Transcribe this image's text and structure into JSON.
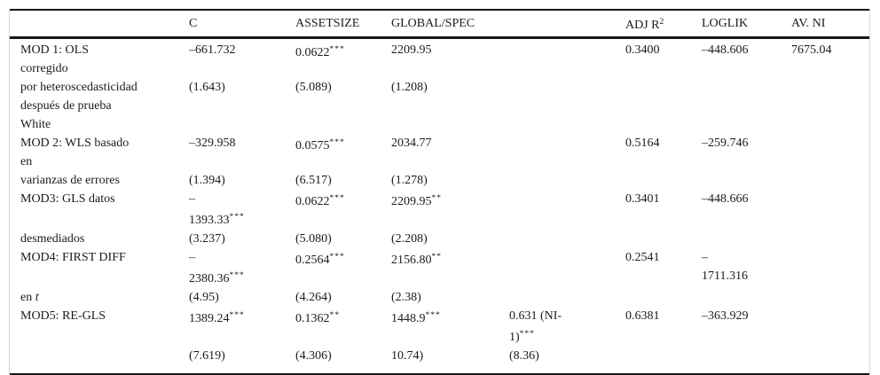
{
  "document_type": "regression-results-table",
  "colors": {
    "background": "#ffffff",
    "text": "#1b1b1b",
    "rule": "#161616",
    "frame_border": "#d4d4d4"
  },
  "table": {
    "headers": [
      {
        "t": ""
      },
      {
        "t": "C"
      },
      {
        "t": "ASSETSIZE"
      },
      {
        "t": "GLOBAL/SPEC"
      },
      {
        "t": ""
      },
      {
        "t": "ADJ R",
        "s": "2"
      },
      {
        "t": "LOGLIK"
      },
      {
        "t": "AV. NI"
      }
    ],
    "rows": [
      {
        "cells": [
          {
            "t": "MOD 1: OLS\ncorregido"
          },
          {
            "t": "–661.732"
          },
          {
            "t": "0.0622",
            "s": "***"
          },
          {
            "t": "2209.95"
          },
          {
            "t": ""
          },
          {
            "t": "0.3400"
          },
          {
            "t": "–448.606"
          },
          {
            "t": "7675.04"
          }
        ]
      },
      {
        "cells": [
          {
            "t": "por heteroscedasticidad\ndespués de prueba\nWhite"
          },
          {
            "t": "(1.643)"
          },
          {
            "t": "(5.089)"
          },
          {
            "t": "(1.208)"
          },
          {
            "t": ""
          },
          {
            "t": ""
          },
          {
            "t": ""
          },
          {
            "t": ""
          }
        ]
      },
      {
        "cells": [
          {
            "t": "MOD 2: WLS basado\nen"
          },
          {
            "t": "–329.958"
          },
          {
            "t": "0.0575",
            "s": "***"
          },
          {
            "t": "2034.77"
          },
          {
            "t": ""
          },
          {
            "t": "0.5164"
          },
          {
            "t": "–259.746"
          },
          {
            "t": ""
          }
        ]
      },
      {
        "cells": [
          {
            "t": "varianzas de errores"
          },
          {
            "t": "(1.394)"
          },
          {
            "t": "(6.517)"
          },
          {
            "t": "(1.278)"
          },
          {
            "t": ""
          },
          {
            "t": ""
          },
          {
            "t": ""
          },
          {
            "t": ""
          }
        ]
      },
      {
        "cells": [
          {
            "t": "MOD3: GLS datos"
          },
          {
            "t": "–\n1393.33",
            "s": "***"
          },
          {
            "t": "0.0622",
            "s": "***"
          },
          {
            "t": "2209.95",
            "s": "**"
          },
          {
            "t": ""
          },
          {
            "t": "0.3401"
          },
          {
            "t": "–448.666"
          },
          {
            "t": ""
          }
        ]
      },
      {
        "cells": [
          {
            "t": "desmediados"
          },
          {
            "t": "(3.237)"
          },
          {
            "t": "(5.080)"
          },
          {
            "t": "(2.208)"
          },
          {
            "t": ""
          },
          {
            "t": ""
          },
          {
            "t": ""
          },
          {
            "t": ""
          }
        ]
      },
      {
        "cells": [
          {
            "t": "MOD4: FIRST DIFF"
          },
          {
            "t": "–\n2380.36",
            "s": "***"
          },
          {
            "t": "0.2564",
            "s": "***"
          },
          {
            "t": "2156.80",
            "s": "**"
          },
          {
            "t": ""
          },
          {
            "t": "0.2541"
          },
          {
            "t": "–\n1711.316"
          },
          {
            "t": ""
          }
        ]
      },
      {
        "cells": [
          {
            "t": "en ",
            "i": "t"
          },
          {
            "t": "(4.95)"
          },
          {
            "t": "(4.264)"
          },
          {
            "t": "(2.38)"
          },
          {
            "t": ""
          },
          {
            "t": ""
          },
          {
            "t": ""
          },
          {
            "t": ""
          }
        ]
      },
      {
        "cells": [
          {
            "t": "MOD5: RE-GLS"
          },
          {
            "t": "1389.24",
            "s": "***"
          },
          {
            "t": "0.1362",
            "s": "**"
          },
          {
            "t": "1448.9",
            "s": "***"
          },
          {
            "t": "0.631 (NI-\n1)",
            "s": "***"
          },
          {
            "t": "0.6381"
          },
          {
            "t": "–363.929"
          },
          {
            "t": ""
          }
        ]
      },
      {
        "cells": [
          {
            "t": ""
          },
          {
            "t": "(7.619)"
          },
          {
            "t": "(4.306)"
          },
          {
            "t": "10.74)"
          },
          {
            "t": "(8.36)"
          },
          {
            "t": ""
          },
          {
            "t": ""
          },
          {
            "t": ""
          }
        ]
      }
    ]
  }
}
